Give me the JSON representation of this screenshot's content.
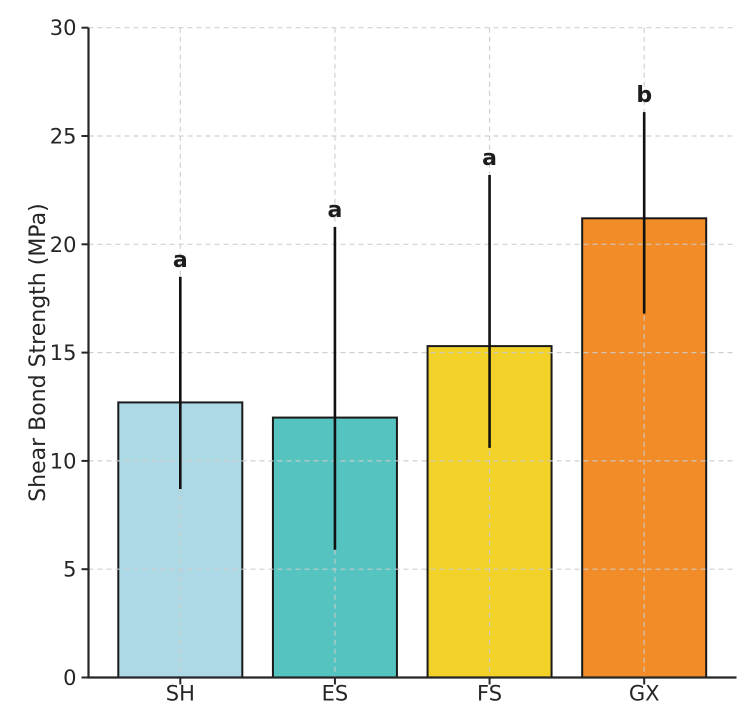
{
  "figure": {
    "background": "#ffffff",
    "text_color": "#262626"
  },
  "chart_data": {
    "type": "bar",
    "title": "",
    "xlabel": "",
    "ylabel": "Shear Bond Strength (MPa)",
    "categories": [
      "SH",
      "ES",
      "FS",
      "GX"
    ],
    "values": [
      12.7,
      12.0,
      15.3,
      21.2
    ],
    "error_upper_abs": [
      18.5,
      20.8,
      23.2,
      26.1
    ],
    "error_lower_abs": [
      8.7,
      5.9,
      10.6,
      16.8
    ],
    "sig_letters": [
      "a",
      "a",
      "a",
      "b"
    ],
    "bar_colors": [
      "#ADD8E6",
      "#55C3C0",
      "#F2D228",
      "#F28C28"
    ],
    "bar_edge_color": "#1a1a1a",
    "error_bar_color": "#111111",
    "grid_color": "#cccccc",
    "axis_color": "#262626",
    "ylim": [
      0,
      30
    ],
    "yticks": [
      0,
      5,
      10,
      15,
      20,
      25,
      30
    ],
    "grid": "dashed-both-x-and-y",
    "legend_position": "none"
  }
}
